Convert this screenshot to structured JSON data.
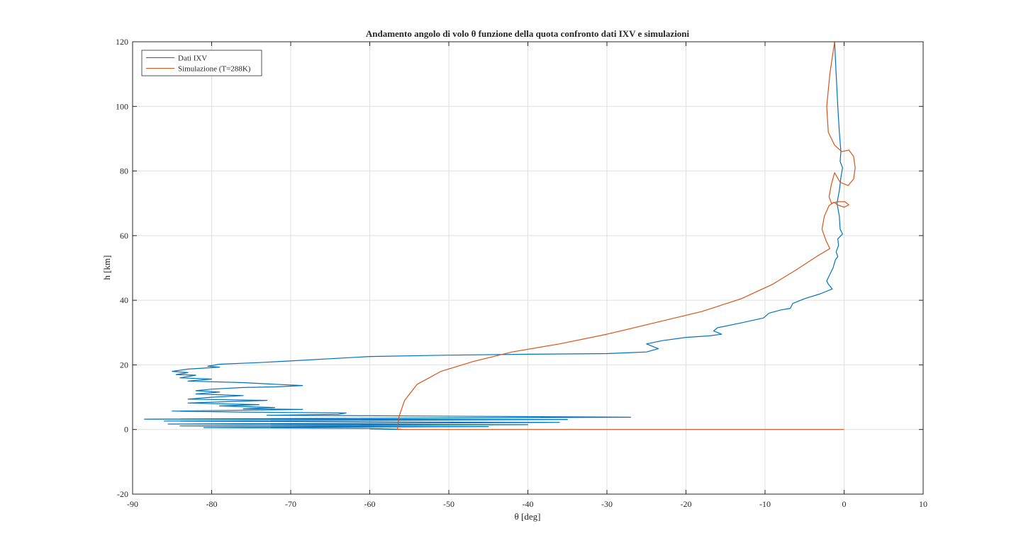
{
  "chart_data": {
    "type": "line",
    "title": "Andamento angolo di volo θ funzione della quota confronto dati IXV e simulazioni",
    "xlabel": "θ [deg]",
    "ylabel": "h [km]",
    "xlim": [
      -90,
      10
    ],
    "ylim": [
      -20,
      120
    ],
    "xticks": [
      "-90",
      "-80",
      "-70",
      "-60",
      "-50",
      "-40",
      "-30",
      "-20",
      "-10",
      "0",
      "10"
    ],
    "yticks": [
      "-20",
      "0",
      "20",
      "40",
      "60",
      "80",
      "100",
      "120"
    ],
    "grid": true,
    "legend_position": "top-left",
    "series": [
      {
        "name": "Dati IXV",
        "color": "#0072BD",
        "points": [
          [
            -1.2,
            120
          ],
          [
            -1.0,
            110
          ],
          [
            -0.8,
            100
          ],
          [
            -0.6,
            92
          ],
          [
            -0.4,
            86
          ],
          [
            -0.5,
            83
          ],
          [
            -0.2,
            81
          ],
          [
            -0.4,
            78
          ],
          [
            -0.6,
            74
          ],
          [
            -0.9,
            70
          ],
          [
            -0.6,
            66
          ],
          [
            -0.5,
            62
          ],
          [
            -0.2,
            60.5
          ],
          [
            -0.8,
            59
          ],
          [
            -0.7,
            57
          ],
          [
            -1.0,
            55
          ],
          [
            -0.8,
            53.5
          ],
          [
            -1.1,
            52.5
          ],
          [
            -1.4,
            50
          ],
          [
            -1.8,
            48
          ],
          [
            -2.2,
            46
          ],
          [
            -2.0,
            45
          ],
          [
            -1.5,
            43.5
          ],
          [
            -3.0,
            42
          ],
          [
            -5.0,
            40.5
          ],
          [
            -6.5,
            39
          ],
          [
            -6.8,
            37.5
          ],
          [
            -8.0,
            37
          ],
          [
            -9.5,
            36
          ],
          [
            -10.2,
            34.5
          ],
          [
            -13,
            33
          ],
          [
            -16,
            31.5
          ],
          [
            -16.5,
            30.5
          ],
          [
            -15.5,
            29.5
          ],
          [
            -17,
            29
          ],
          [
            -20,
            28.5
          ],
          [
            -23,
            27.5
          ],
          [
            -25,
            26.5
          ],
          [
            -24,
            25.5
          ],
          [
            -23.5,
            25
          ],
          [
            -25,
            24
          ],
          [
            -30,
            23.5
          ],
          [
            -40,
            23.3
          ],
          [
            -50,
            23
          ],
          [
            -60,
            22.6
          ],
          [
            -68,
            21.5
          ],
          [
            -74,
            20.7
          ],
          [
            -79,
            20.2
          ],
          [
            -80.5,
            19.6
          ],
          [
            -79,
            19.3
          ],
          [
            -83,
            18.7
          ],
          [
            -85,
            18
          ],
          [
            -83,
            17.6
          ],
          [
            -84.5,
            17
          ],
          [
            -82,
            16.8
          ],
          [
            -84,
            16
          ],
          [
            -80,
            15.6
          ],
          [
            -83,
            15
          ],
          [
            -76,
            14.5
          ],
          [
            -72,
            14
          ],
          [
            -68.5,
            13.6
          ],
          [
            -72,
            13.2
          ],
          [
            -76,
            13
          ],
          [
            -80,
            12.5
          ],
          [
            -82,
            12
          ],
          [
            -79,
            11.6
          ],
          [
            -82,
            11
          ],
          [
            -76,
            10.5
          ],
          [
            -80,
            10
          ],
          [
            -83,
            9.4
          ],
          [
            -73,
            9
          ],
          [
            -77,
            8.7
          ],
          [
            -83,
            8.2
          ],
          [
            -74,
            7.7
          ],
          [
            -79,
            7.3
          ],
          [
            -72,
            6.8
          ],
          [
            -76,
            6.4
          ],
          [
            -68.5,
            6.2
          ],
          [
            -85,
            5.7
          ],
          [
            -76,
            5.4
          ],
          [
            -63,
            5.1
          ],
          [
            -64,
            4.7
          ],
          [
            -73,
            4.4
          ],
          [
            -40,
            4
          ],
          [
            -27,
            3.8
          ],
          [
            -88.5,
            3.2
          ],
          [
            -35,
            3.1
          ],
          [
            -86,
            2.6
          ],
          [
            -36,
            2.2
          ],
          [
            -85.5,
            1.7
          ],
          [
            -40,
            1.5
          ],
          [
            -84,
            1.1
          ],
          [
            -45,
            0.9
          ],
          [
            -81,
            0.6
          ],
          [
            -60,
            0.3
          ],
          [
            -56,
            0.1
          ],
          [
            -60,
            0.2
          ],
          [
            -56.5,
            0.0
          ]
        ]
      },
      {
        "name": "Simulazione (T=288K)",
        "color": "#D95319",
        "points": [
          [
            -1.2,
            120
          ],
          [
            -1.8,
            110
          ],
          [
            -2.2,
            100
          ],
          [
            -2.0,
            92
          ],
          [
            -1.2,
            88
          ],
          [
            -0.3,
            86
          ],
          [
            0.6,
            86.5
          ],
          [
            1.2,
            84.5
          ],
          [
            1.4,
            81
          ],
          [
            1.2,
            77.5
          ],
          [
            0.5,
            75.5
          ],
          [
            -0.5,
            76.5
          ],
          [
            -1.2,
            79.5
          ],
          [
            -1.6,
            76
          ],
          [
            -1.9,
            72
          ],
          [
            -1.6,
            70
          ],
          [
            -0.8,
            70.5
          ],
          [
            0.1,
            70.5
          ],
          [
            0.6,
            69.5
          ],
          [
            0.0,
            68.8
          ],
          [
            -0.8,
            69.5
          ],
          [
            -1.3,
            70.3
          ],
          [
            -1.9,
            69.3
          ],
          [
            -2.5,
            66
          ],
          [
            -2.8,
            62
          ],
          [
            -2.3,
            58.5
          ],
          [
            -1.8,
            56
          ],
          [
            -3.5,
            53.5
          ],
          [
            -6,
            49.5
          ],
          [
            -9,
            45
          ],
          [
            -13,
            40.5
          ],
          [
            -18,
            36.5
          ],
          [
            -24,
            33
          ],
          [
            -30,
            29.5
          ],
          [
            -36,
            26.5
          ],
          [
            -42,
            24
          ],
          [
            -47,
            21
          ],
          [
            -51,
            18
          ],
          [
            -54,
            14
          ],
          [
            -55.6,
            9
          ],
          [
            -56.3,
            4
          ],
          [
            -56.5,
            0
          ],
          [
            -45,
            0
          ],
          [
            -30,
            0
          ],
          [
            -15,
            0
          ],
          [
            0,
            0
          ]
        ]
      }
    ]
  }
}
